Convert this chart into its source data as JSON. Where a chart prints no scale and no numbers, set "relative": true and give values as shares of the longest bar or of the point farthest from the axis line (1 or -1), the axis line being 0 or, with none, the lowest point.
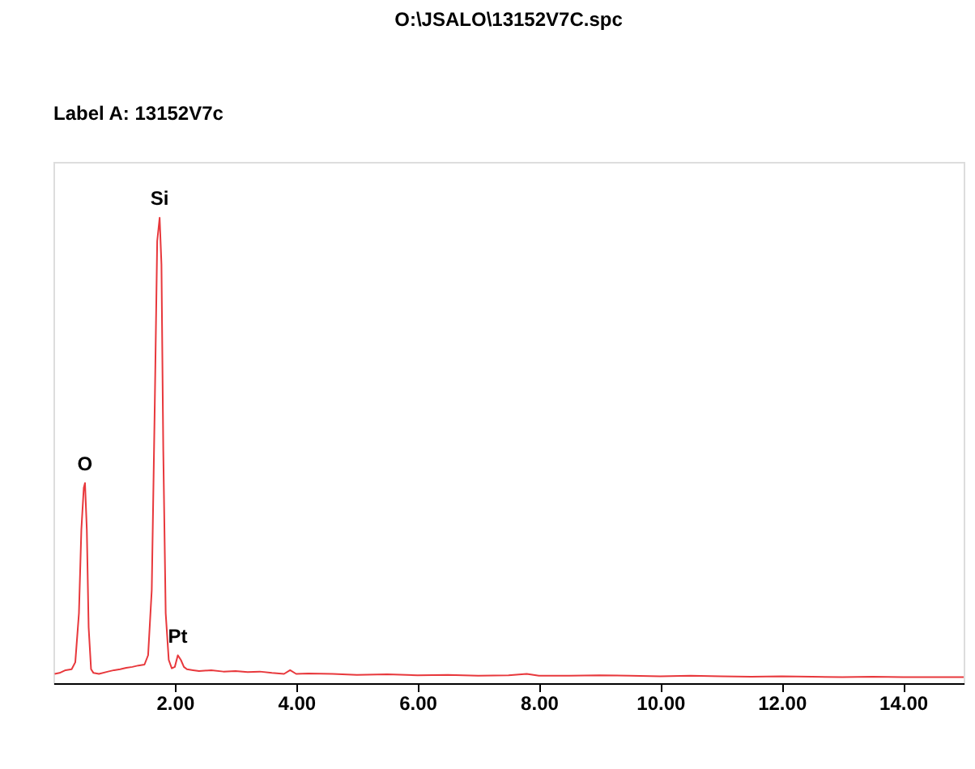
{
  "chart_data": {
    "type": "line",
    "title": "O:\\JSALO\\13152V7C.spc",
    "relative": true,
    "x": [
      0.02,
      0.1,
      0.2,
      0.3,
      0.36,
      0.42,
      0.46,
      0.5,
      0.52,
      0.55,
      0.58,
      0.62,
      0.66,
      0.75,
      0.9,
      1.0,
      1.1,
      1.2,
      1.3,
      1.4,
      1.5,
      1.56,
      1.62,
      1.67,
      1.71,
      1.75,
      1.78,
      1.81,
      1.85,
      1.9,
      1.95,
      2.0,
      2.05,
      2.1,
      2.15,
      2.2,
      2.3,
      2.4,
      2.6,
      2.8,
      3.0,
      3.2,
      3.4,
      3.6,
      3.8,
      3.9,
      4.0,
      4.2,
      4.6,
      5.0,
      5.5,
      6.0,
      6.5,
      7.0,
      7.5,
      7.8,
      8.0,
      8.5,
      9.0,
      9.5,
      10.0,
      10.5,
      11.0,
      11.5,
      12.0,
      12.5,
      13.0,
      13.5,
      14.0,
      14.5,
      15.0
    ],
    "series": [
      {
        "color": "#e8383c",
        "values": [
          0.02,
          0.022,
          0.028,
          0.03,
          0.045,
          0.15,
          0.33,
          0.42,
          0.43,
          0.33,
          0.12,
          0.03,
          0.022,
          0.02,
          0.025,
          0.028,
          0.03,
          0.033,
          0.035,
          0.038,
          0.04,
          0.06,
          0.2,
          0.6,
          0.95,
          1.0,
          0.9,
          0.5,
          0.15,
          0.05,
          0.032,
          0.035,
          0.06,
          0.05,
          0.035,
          0.03,
          0.028,
          0.026,
          0.028,
          0.025,
          0.026,
          0.024,
          0.025,
          0.022,
          0.02,
          0.028,
          0.02,
          0.021,
          0.02,
          0.018,
          0.019,
          0.017,
          0.018,
          0.016,
          0.017,
          0.02,
          0.016,
          0.016,
          0.017,
          0.016,
          0.015,
          0.016,
          0.015,
          0.014,
          0.015,
          0.014,
          0.013,
          0.014,
          0.013,
          0.013,
          0.013
        ]
      }
    ],
    "xlim": [
      0,
      15
    ],
    "xticks": [
      {
        "value": 2,
        "label": "2.00"
      },
      {
        "value": 4,
        "label": "4.00"
      },
      {
        "value": 6,
        "label": "6.00"
      },
      {
        "value": 8,
        "label": "8.00"
      },
      {
        "value": 10,
        "label": "10.00"
      },
      {
        "value": 12,
        "label": "12.00"
      },
      {
        "value": 14,
        "label": "14.00"
      }
    ],
    "annotations": [
      "Label A: 13152V7c",
      {
        "text": "O",
        "x": 0.52,
        "y": 0.43
      },
      {
        "text": "Si",
        "x": 1.75,
        "y": 1.0
      },
      {
        "text": "Pt",
        "x": 2.05,
        "y": 0.06
      }
    ],
    "grid": false,
    "marker": "none",
    "line_style": "solid"
  }
}
